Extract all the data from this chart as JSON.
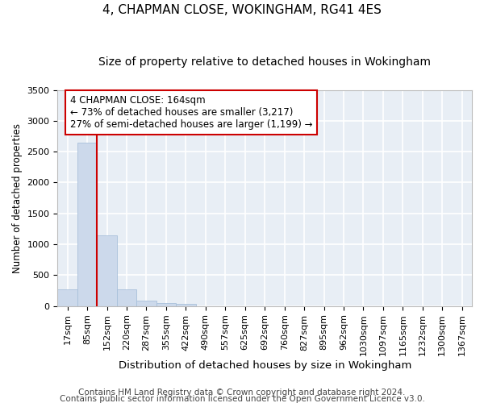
{
  "title1": "4, CHAPMAN CLOSE, WOKINGHAM, RG41 4ES",
  "title2": "Size of property relative to detached houses in Wokingham",
  "xlabel": "Distribution of detached houses by size in Wokingham",
  "ylabel": "Number of detached properties",
  "categories": [
    "17sqm",
    "85sqm",
    "152sqm",
    "220sqm",
    "287sqm",
    "355sqm",
    "422sqm",
    "490sqm",
    "557sqm",
    "625sqm",
    "692sqm",
    "760sqm",
    "827sqm",
    "895sqm",
    "962sqm",
    "1030sqm",
    "1097sqm",
    "1165sqm",
    "1232sqm",
    "1300sqm",
    "1367sqm"
  ],
  "values": [
    270,
    2650,
    1150,
    270,
    90,
    50,
    30,
    0,
    0,
    0,
    0,
    0,
    0,
    0,
    0,
    0,
    0,
    0,
    0,
    0,
    0
  ],
  "bar_color": "#ccd9eb",
  "bar_edge_color": "#a8c0da",
  "vline_x": 2,
  "vline_color": "#cc0000",
  "ylim": [
    0,
    3500
  ],
  "yticks": [
    0,
    500,
    1000,
    1500,
    2000,
    2500,
    3000,
    3500
  ],
  "annotation_line1": "4 CHAPMAN CLOSE: 164sqm",
  "annotation_line2": "← 73% of detached houses are smaller (3,217)",
  "annotation_line3": "27% of semi-detached houses are larger (1,199) →",
  "footer1": "Contains HM Land Registry data © Crown copyright and database right 2024.",
  "footer2": "Contains public sector information licensed under the Open Government Licence v3.0.",
  "background_color": "#e8eef5",
  "grid_color": "#ffffff",
  "title1_fontsize": 11,
  "title2_fontsize": 10,
  "xlabel_fontsize": 9.5,
  "ylabel_fontsize": 8.5,
  "tick_fontsize": 8,
  "footer_fontsize": 7.5,
  "annot_fontsize": 8.5
}
